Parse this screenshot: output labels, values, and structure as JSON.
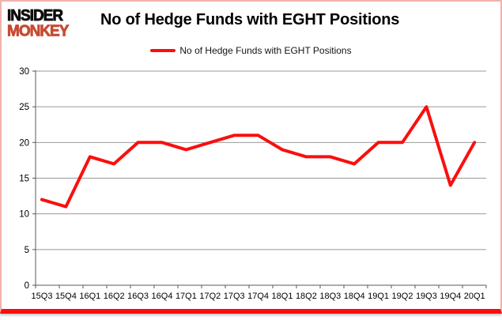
{
  "brand": {
    "line1": "INSIDER",
    "line2": "MONKEY"
  },
  "header": {
    "title": "No of Hedge Funds with EGHT Positions"
  },
  "legend": {
    "label": "No of Hedge Funds with EGHT Positions"
  },
  "colors": {
    "series_line": "#fb0e0e",
    "legend_swatch": "#fb0e0e",
    "grid": "#999999",
    "axis": "#595959",
    "tick_label": "#000000",
    "brand_black": "#0d0d0d",
    "brand_red": "#c74b33",
    "frame_border": "#f0b2ac",
    "bottom_bar": "#fa0d0d"
  },
  "chart_data": {
    "type": "line",
    "title": "No of Hedge Funds with EGHT Positions",
    "categories": [
      "15Q3",
      "15Q4",
      "16Q1",
      "16Q2",
      "16Q3",
      "16Q4",
      "17Q1",
      "17Q2",
      "17Q3",
      "17Q4",
      "18Q1",
      "18Q2",
      "18Q3",
      "18Q4",
      "19Q1",
      "19Q2",
      "19Q3",
      "19Q4",
      "20Q1"
    ],
    "series": [
      {
        "name": "No of Hedge Funds with EGHT Positions",
        "values": [
          12,
          11,
          18,
          17,
          20,
          20,
          19,
          20,
          21,
          21,
          19,
          18,
          18,
          17,
          20,
          20,
          25,
          14,
          20
        ]
      }
    ],
    "xlabel": "",
    "ylabel": "",
    "ylim": [
      0,
      30
    ],
    "yticks": [
      0,
      5,
      10,
      15,
      20,
      25,
      30
    ],
    "grid": true,
    "legend_position": "top"
  }
}
